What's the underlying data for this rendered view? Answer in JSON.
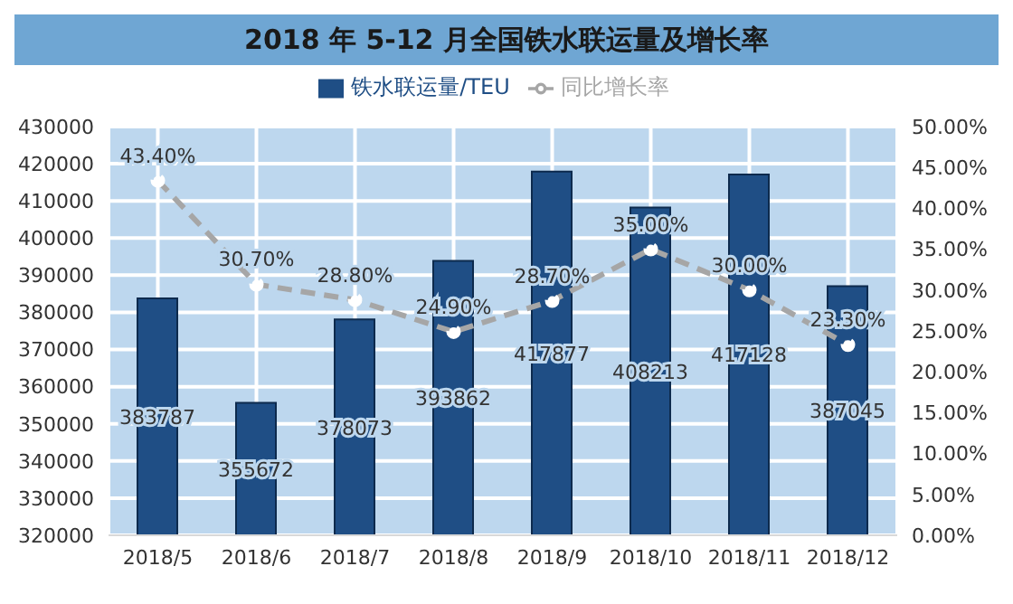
{
  "chart_data": {
    "type": "bar",
    "title": "2018 年 5-12 月全国铁水联运量及增长率",
    "categories": [
      "2018/5",
      "2018/6",
      "2018/7",
      "2018/8",
      "2018/9",
      "2018/10",
      "2018/11",
      "2018/12"
    ],
    "series": [
      {
        "name": "铁水联运量/TEU",
        "color": "#1f4e85",
        "values": [
          383787,
          355672,
          378073,
          393862,
          417877,
          408213,
          417128,
          387045
        ],
        "value_labels": [
          "383787",
          "355672",
          "378073",
          "393862",
          "417877",
          "408213",
          "417128",
          "387045"
        ]
      },
      {
        "name": "同比增长率",
        "type": "line",
        "axis": "y2",
        "color": "#a6a6a6",
        "line_style": "dashed",
        "marker": "circle",
        "values": [
          43.4,
          30.7,
          28.8,
          24.9,
          28.7,
          35.0,
          30.0,
          23.3
        ],
        "value_labels": [
          "43.40%",
          "30.70%",
          "28.80%",
          "24.90%",
          "28.70%",
          "35.00%",
          "30.00%",
          "23.30%"
        ]
      }
    ],
    "ylim": [
      320000,
      430000
    ],
    "yticks": [
      320000,
      330000,
      340000,
      350000,
      360000,
      370000,
      380000,
      390000,
      400000,
      410000,
      420000,
      430000
    ],
    "y2lim": [
      0,
      50
    ],
    "y2ticks": [
      {
        "value": 0,
        "label": "0.00%"
      },
      {
        "value": 5,
        "label": "5.00%"
      },
      {
        "value": 10,
        "label": "10.00%"
      },
      {
        "value": 15,
        "label": "15.00%"
      },
      {
        "value": 20,
        "label": "20.00%"
      },
      {
        "value": 25,
        "label": "25.00%"
      },
      {
        "value": 30,
        "label": "30.00%"
      },
      {
        "value": 35,
        "label": "35.00%"
      },
      {
        "value": 40,
        "label": "40.00%"
      },
      {
        "value": 45,
        "label": "45.00%"
      },
      {
        "value": 50,
        "label": "50.00%"
      }
    ],
    "grid": true,
    "legend": "top"
  }
}
